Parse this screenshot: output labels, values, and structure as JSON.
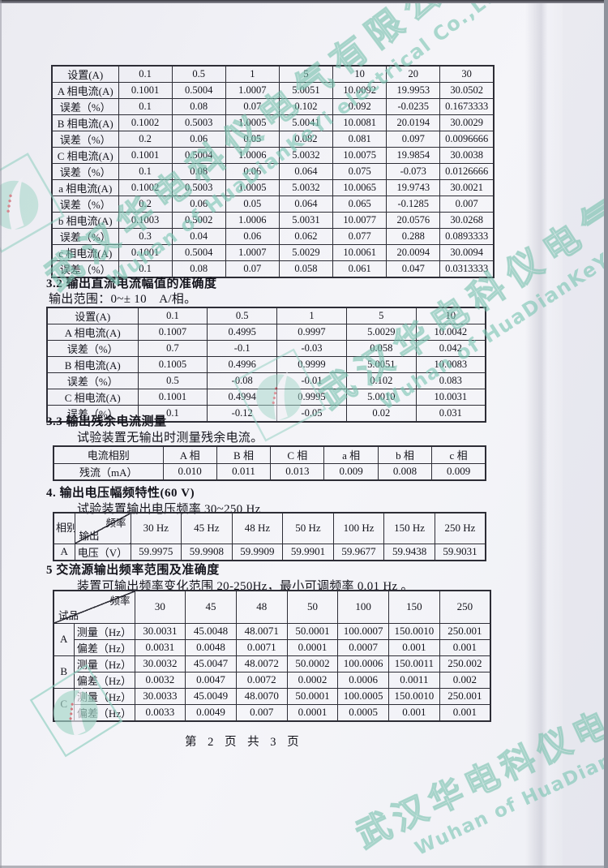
{
  "watermark": {
    "cn": "武汉华电科仪电气有限公司",
    "en": "Wuhan of HuaDianKeYi electrical Co.,Ltd",
    "color": "#7cc7b2"
  },
  "footer": {
    "text": "第 2 页 共 3 页"
  },
  "table1": {
    "corner": "设置(A)",
    "header": [
      "0.1",
      "0.5",
      "1",
      "5",
      "10",
      "20",
      "30"
    ],
    "rows": [
      [
        "A 相电流(A)",
        "0.1001",
        "0.5004",
        "1.0007",
        "5.0051",
        "10.0092",
        "19.9953",
        "30.0502"
      ],
      [
        "误差（%）",
        "0.1",
        "0.08",
        "0.07",
        "0.102",
        "0.092",
        "-0.0235",
        "0.1673333"
      ],
      [
        "B 相电流(A)",
        "0.1002",
        "0.5003",
        "1.0005",
        "5.0041",
        "10.0081",
        "20.0194",
        "30.0029"
      ],
      [
        "误差（%）",
        "0.2",
        "0.06",
        "0.05",
        "0.082",
        "0.081",
        "0.097",
        "0.0096666"
      ],
      [
        "C 相电流(A)",
        "0.1001",
        "0.5004",
        "1.0006",
        "5.0032",
        "10.0075",
        "19.9854",
        "30.0038"
      ],
      [
        "误差（%）",
        "0.1",
        "0.08",
        "0.06",
        "0.064",
        "0.075",
        "-0.073",
        "0.0126666"
      ],
      [
        "a 相电流(A)",
        "0.1002",
        "0.5003",
        "1.0005",
        "5.0032",
        "10.0065",
        "19.9743",
        "30.0021"
      ],
      [
        "误差（%）",
        "0.2",
        "0.06",
        "0.05",
        "0.064",
        "0.065",
        "-0.1285",
        "0.007"
      ],
      [
        "b 相电流(A)",
        "0.1003",
        "0.5002",
        "1.0006",
        "5.0031",
        "10.0077",
        "20.0576",
        "30.0268"
      ],
      [
        "误差（%）",
        "0.3",
        "0.04",
        "0.06",
        "0.062",
        "0.077",
        "0.288",
        "0.0893333"
      ],
      [
        "c 相电流(A)",
        "0.1001",
        "0.5004",
        "1.0007",
        "5.0029",
        "10.0061",
        "20.0094",
        "30.0094"
      ],
      [
        "误差（%）",
        "0.1",
        "0.08",
        "0.07",
        "0.058",
        "0.061",
        "0.047",
        "0.0313333"
      ]
    ]
  },
  "section32": {
    "heading": "3.2 输出直流电流幅值的准确度",
    "subline": "输出范围：0~± 10　A/相。"
  },
  "table2": {
    "corner": "设置(A)",
    "header": [
      "0.1",
      "0.5",
      "1",
      "5",
      "10"
    ],
    "rows": [
      [
        "A 相电流(A)",
        "0.1007",
        "0.4995",
        "0.9997",
        "5.0029",
        "10.0042"
      ],
      [
        "误差（%）",
        "0.7",
        "-0.1",
        "-0.03",
        "0.058",
        "0.042"
      ],
      [
        "B 相电流(A)",
        "0.1005",
        "0.4996",
        "0.9999",
        "5.0051",
        "10.0083"
      ],
      [
        "误差（%）",
        "0.5",
        "-0.08",
        "-0.01",
        "0.102",
        "0.083"
      ],
      [
        "C 相电流(A)",
        "0.1001",
        "0.4994",
        "0.9995",
        "5.0010",
        "10.0031"
      ],
      [
        "误差（%）",
        "0.1",
        "-0.12",
        "-0.05",
        "0.02",
        "0.031"
      ]
    ]
  },
  "section33": {
    "heading": "3.3 输出残余电流测量",
    "subline": "试验装置无输出时测量残余电流。"
  },
  "table3": {
    "rows": [
      [
        "电流相别",
        "A 相",
        "B 相",
        "C 相",
        "a 相",
        "b 相",
        "c 相"
      ],
      [
        "残流（mA）",
        "0.010",
        "0.011",
        "0.013",
        "0.009",
        "0.008",
        "0.009"
      ]
    ]
  },
  "section4": {
    "heading": "4. 输出电压幅频特性(60 V)",
    "subline": "试验装置输出电压频率 30~250 Hz"
  },
  "table4": {
    "corner_left": "相别",
    "diag_top": "频率",
    "diag_bottom": "输出",
    "freqs": [
      "30 Hz",
      "45 Hz",
      "48 Hz",
      "50 Hz",
      "100 Hz",
      "150 Hz",
      "250 Hz"
    ],
    "row_phase": "A",
    "row_label": "电压（V）",
    "values": [
      "59.9975",
      "59.9908",
      "59.9909",
      "59.9901",
      "59.9677",
      "59.9438",
      "59.9031"
    ]
  },
  "section5": {
    "heading": "5 交流源输出频率范围及准确度",
    "subline": "装置可输出频率变化范围 20-250Hz，最小可调频率 0.01 Hz 。"
  },
  "table5": {
    "diag_top": "频率",
    "diag_bottom": "试品",
    "freqs": [
      "30",
      "45",
      "48",
      "50",
      "100",
      "150",
      "250"
    ],
    "groups": [
      {
        "phase": "A",
        "meas_label": "测量（Hz）",
        "dev_label": "偏差（Hz）",
        "meas": [
          "30.0031",
          "45.0048",
          "48.0071",
          "50.0001",
          "100.0007",
          "150.0010",
          "250.001"
        ],
        "dev": [
          "0.0031",
          "0.0048",
          "0.0071",
          "0.0001",
          "0.0007",
          "0.001",
          "0.001"
        ]
      },
      {
        "phase": "B",
        "meas_label": "测量（Hz）",
        "dev_label": "偏差（Hz）",
        "meas": [
          "30.0032",
          "45.0047",
          "48.0072",
          "50.0002",
          "100.0006",
          "150.0011",
          "250.002"
        ],
        "dev": [
          "0.0032",
          "0.0047",
          "0.0072",
          "0.0002",
          "0.0006",
          "0.0011",
          "0.002"
        ]
      },
      {
        "phase": "C",
        "meas_label": "测量（Hz）",
        "dev_label": "偏差（Hz）",
        "meas": [
          "30.0033",
          "45.0049",
          "48.0070",
          "50.0001",
          "100.0005",
          "150.0010",
          "250.001"
        ],
        "dev": [
          "0.0033",
          "0.0049",
          "0.007",
          "0.0001",
          "0.0005",
          "0.001",
          "0.001"
        ]
      }
    ]
  }
}
